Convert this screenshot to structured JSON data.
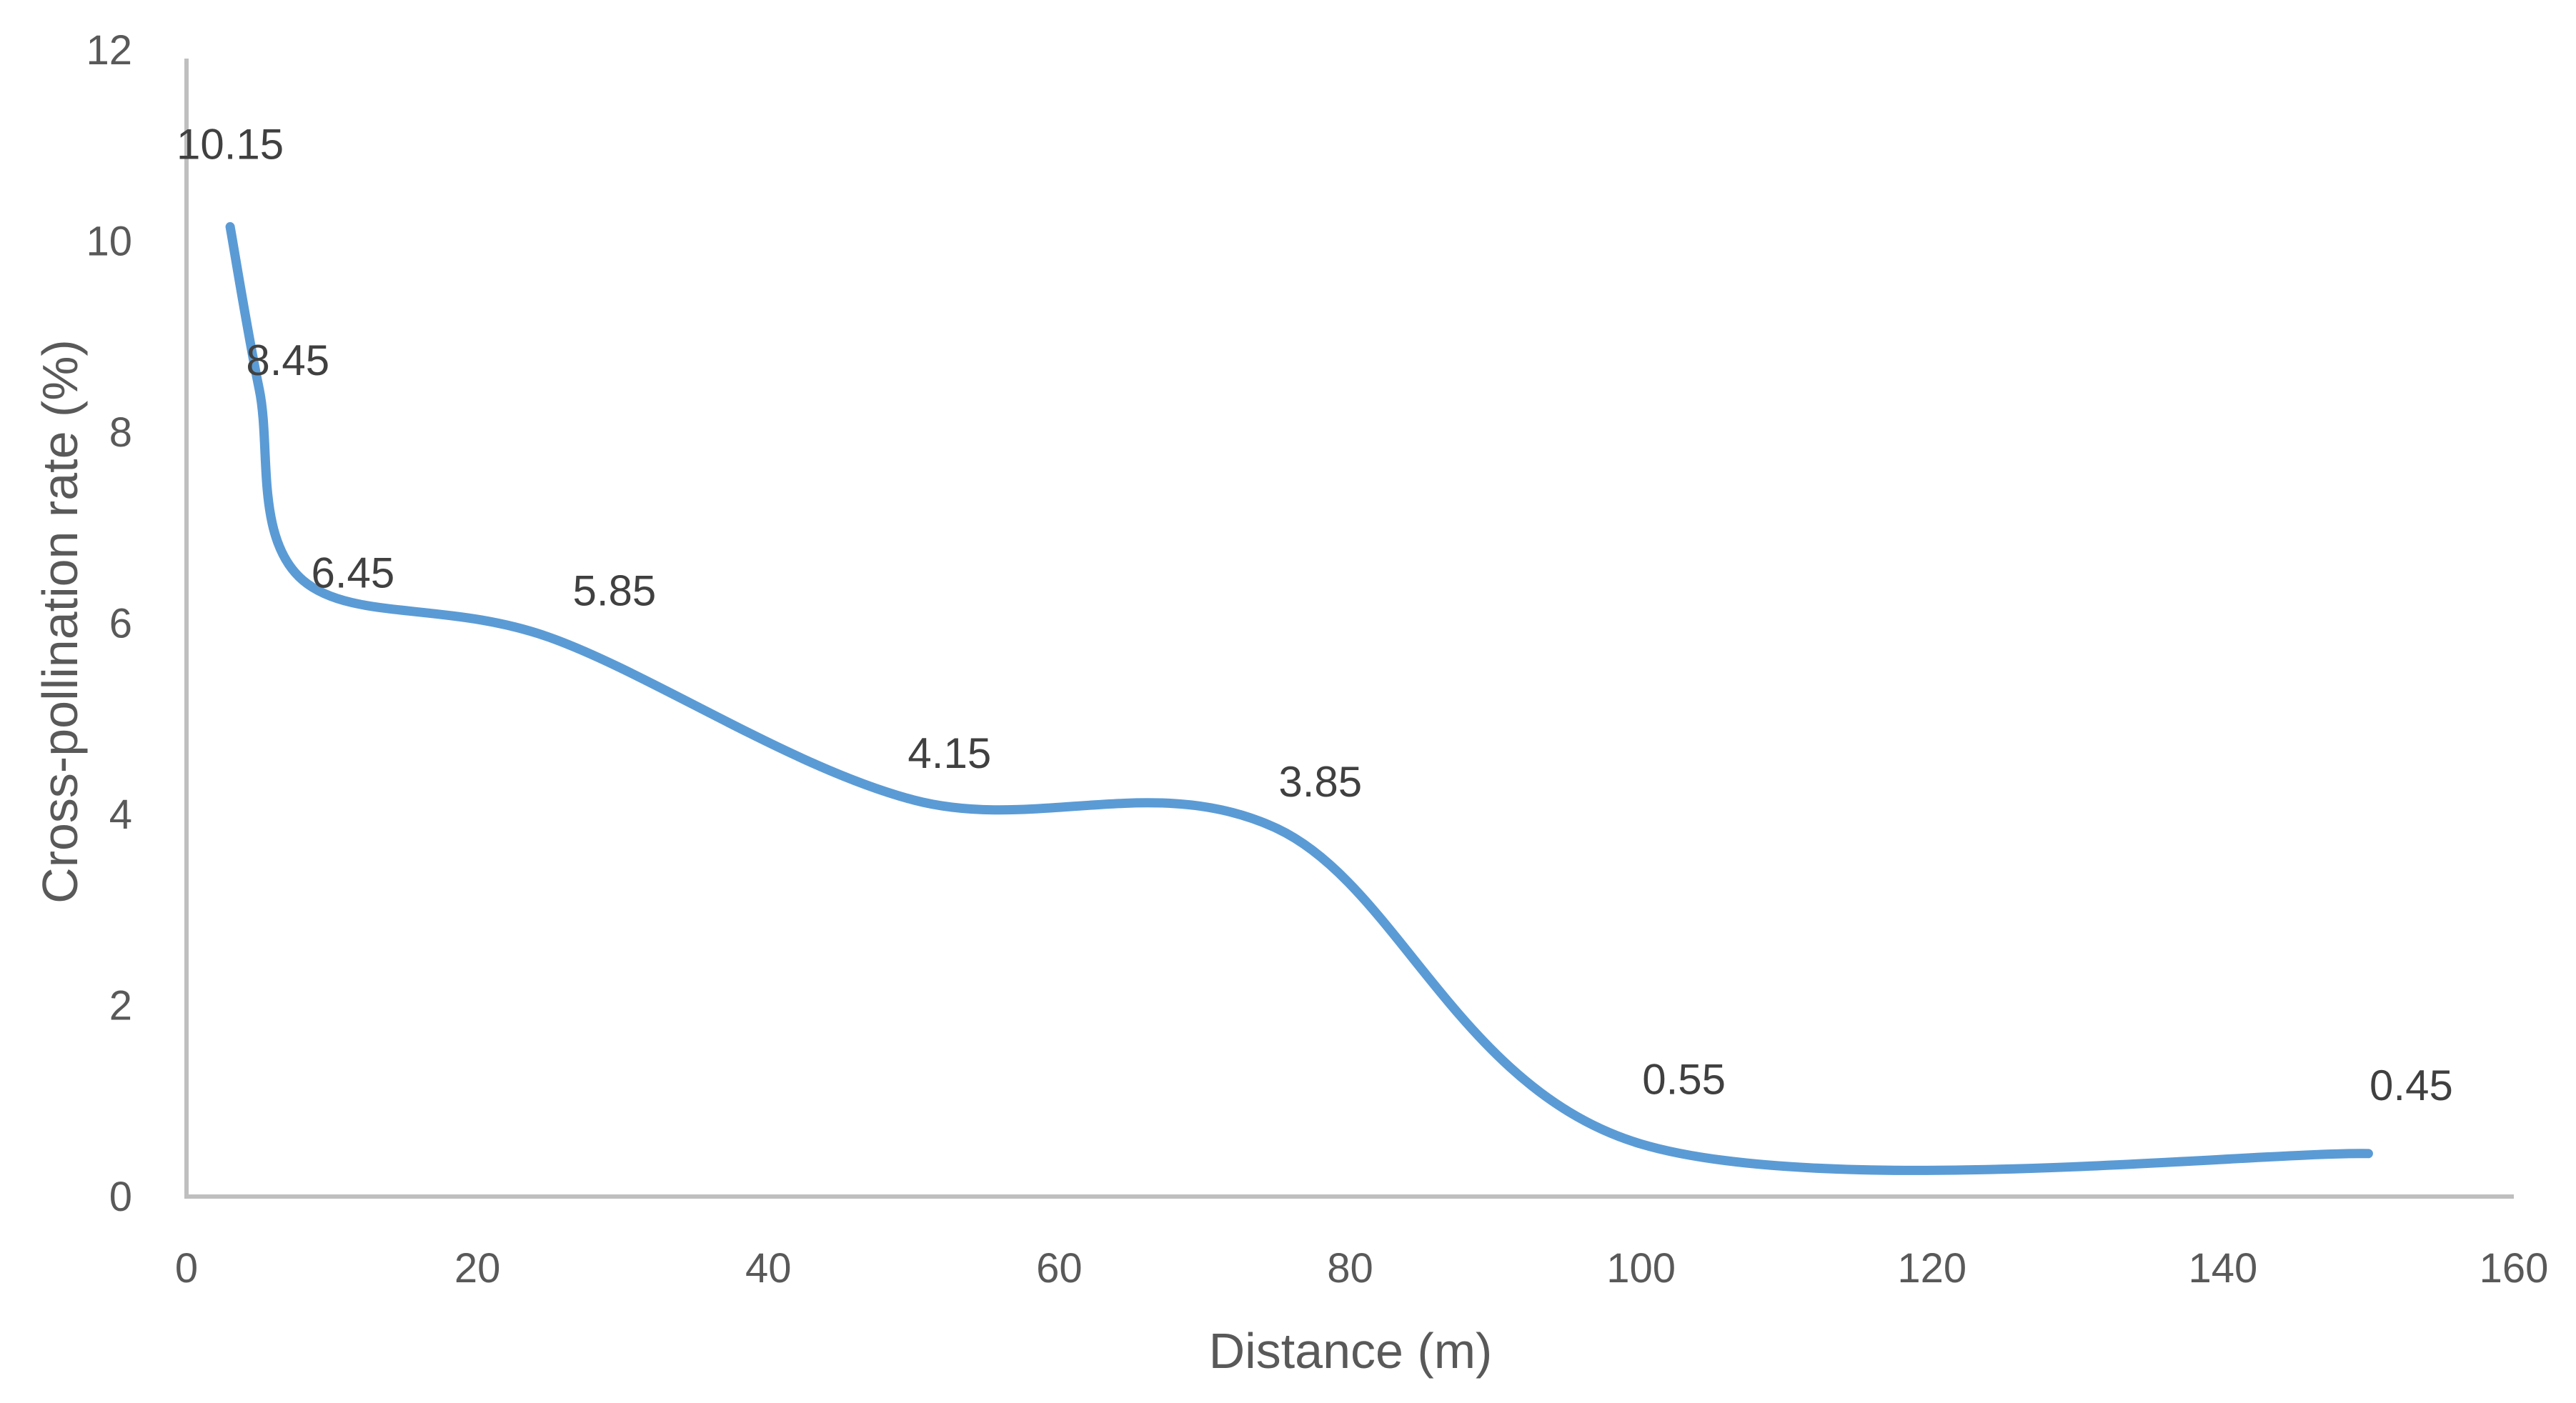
{
  "chart_data": {
    "type": "line",
    "smoothed": true,
    "title": "",
    "xlabel": "Distance (m)",
    "ylabel": "Cross-pollination rate (%)",
    "xlim": [
      0,
      160
    ],
    "ylim": [
      0,
      12
    ],
    "x_ticks": [
      0,
      20,
      40,
      60,
      80,
      100,
      120,
      140,
      160
    ],
    "y_ticks": [
      0,
      2,
      4,
      6,
      8,
      10,
      12
    ],
    "grid": false,
    "legend": null,
    "series": [
      {
        "name": "Cross-pollination rate",
        "color": "#5B9BD5",
        "x": [
          3,
          5,
          8,
          25,
          50,
          75,
          100,
          150
        ],
        "values": [
          10.15,
          8.45,
          6.45,
          5.85,
          4.15,
          3.85,
          0.55,
          0.45
        ],
        "labels": [
          "10.15",
          "8.45",
          "6.45",
          "5.85",
          "4.15",
          "3.85",
          "0.55",
          "0.45"
        ]
      }
    ]
  },
  "colors": {
    "axis": "#BFBFBF",
    "tick_text": "#595959",
    "label_text": "#404040",
    "line": "#5B9BD5"
  },
  "axes": {
    "x_title": "Distance (m)",
    "y_title": "Cross-pollination rate (%)"
  }
}
